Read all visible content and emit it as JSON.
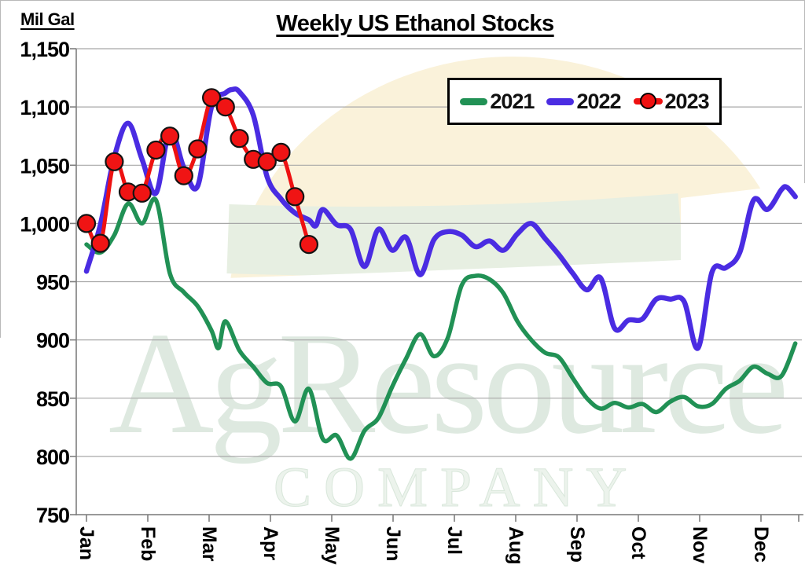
{
  "header": {
    "unit_label": "Mil Gal",
    "title": "Weekly US Ethanol Stocks"
  },
  "legend": {
    "items": [
      {
        "label": "2021",
        "color": "#219155",
        "marker": "line"
      },
      {
        "label": "2022",
        "color": "#4a2ce2",
        "marker": "line"
      },
      {
        "label": "2023",
        "color": "#ee1111",
        "marker": "line-circle"
      }
    ]
  },
  "watermark": {
    "line1": "AgResource",
    "line2": "COMPANY",
    "color1": "#dee9e0",
    "color2": "#ecf3ec"
  },
  "logo": {
    "dome_color": "#faf2da",
    "arc_color": "#e7efe2"
  },
  "chart_data": {
    "type": "line",
    "title": "Weekly US Ethanol Stocks",
    "ylabel": "Mil Gal",
    "xlabel": "",
    "x_unit": "week of year",
    "x_months": [
      "Jan",
      "Feb",
      "Mar",
      "Apr",
      "May",
      "Jun",
      "Jul",
      "Aug",
      "Sep",
      "Oct",
      "Nov",
      "Dec"
    ],
    "ylim": [
      750,
      1150
    ],
    "yticks": [
      1150,
      1100,
      1050,
      1000,
      950,
      900,
      850,
      800,
      750
    ],
    "ytick_labels": [
      "1,150",
      "1,100",
      "1,050",
      "1,000",
      "950",
      "900",
      "850",
      "800",
      "750"
    ],
    "grid": "horizontal",
    "legend_position": "top-right",
    "gridline_color": "#a8a8a8",
    "axis_color": "#7f7f7f",
    "series": [
      {
        "name": "2021",
        "color": "#219155",
        "style": "smooth-line",
        "line_width": 5.5,
        "points": [
          [
            1,
            982
          ],
          [
            2,
            975
          ],
          [
            3,
            990
          ],
          [
            4,
            1017
          ],
          [
            5,
            1000
          ],
          [
            6,
            1020
          ],
          [
            7,
            957
          ],
          [
            8,
            941
          ],
          [
            9,
            929
          ],
          [
            10,
            908
          ],
          [
            10.5,
            893
          ],
          [
            11,
            916
          ],
          [
            12,
            891
          ],
          [
            13,
            877
          ],
          [
            14,
            863
          ],
          [
            15,
            860
          ],
          [
            16,
            830
          ],
          [
            17,
            858
          ],
          [
            18,
            815
          ],
          [
            19,
            818
          ],
          [
            20,
            798
          ],
          [
            21,
            822
          ],
          [
            22,
            833
          ],
          [
            23,
            860
          ],
          [
            24,
            884
          ],
          [
            25,
            905
          ],
          [
            26,
            886
          ],
          [
            27,
            902
          ],
          [
            28,
            947
          ],
          [
            29,
            955
          ],
          [
            30,
            952
          ],
          [
            31,
            940
          ],
          [
            32,
            916
          ],
          [
            33,
            900
          ],
          [
            34,
            889
          ],
          [
            35,
            885
          ],
          [
            36,
            867
          ],
          [
            37,
            850
          ],
          [
            38,
            841
          ],
          [
            39,
            846
          ],
          [
            40,
            842
          ],
          [
            41,
            845
          ],
          [
            42,
            838
          ],
          [
            43,
            847
          ],
          [
            44,
            851
          ],
          [
            45,
            843
          ],
          [
            46,
            845
          ],
          [
            47,
            858
          ],
          [
            48,
            865
          ],
          [
            49,
            877
          ],
          [
            50,
            871
          ],
          [
            51,
            869
          ],
          [
            52,
            897
          ]
        ]
      },
      {
        "name": "2022",
        "color": "#4a2ce2",
        "style": "smooth-line",
        "line_width": 6.5,
        "points": [
          [
            1,
            959
          ],
          [
            2,
            999
          ],
          [
            3,
            1057
          ],
          [
            4,
            1086
          ],
          [
            5,
            1055
          ],
          [
            6,
            1026
          ],
          [
            7,
            1080
          ],
          [
            8,
            1048
          ],
          [
            9,
            1032
          ],
          [
            10,
            1100
          ],
          [
            11,
            1112
          ],
          [
            11.5,
            1115
          ],
          [
            12,
            1113
          ],
          [
            13,
            1093
          ],
          [
            14,
            1040
          ],
          [
            15,
            1021
          ],
          [
            16,
            1009
          ],
          [
            17,
            1003
          ],
          [
            17.5,
            998
          ],
          [
            18,
            1012
          ],
          [
            19,
            999
          ],
          [
            20,
            995
          ],
          [
            21,
            963
          ],
          [
            22,
            995
          ],
          [
            23,
            977
          ],
          [
            24,
            988
          ],
          [
            25,
            956
          ],
          [
            26,
            986
          ],
          [
            27,
            993
          ],
          [
            28,
            990
          ],
          [
            29,
            980
          ],
          [
            30,
            985
          ],
          [
            31,
            977
          ],
          [
            32,
            991
          ],
          [
            33,
            1000
          ],
          [
            34,
            987
          ],
          [
            35,
            973
          ],
          [
            36,
            957
          ],
          [
            37,
            943
          ],
          [
            38,
            953
          ],
          [
            39,
            910
          ],
          [
            40,
            917
          ],
          [
            41,
            918
          ],
          [
            42,
            935
          ],
          [
            43,
            935
          ],
          [
            44,
            933
          ],
          [
            45,
            893
          ],
          [
            46,
            958
          ],
          [
            47,
            962
          ],
          [
            48,
            975
          ],
          [
            49,
            1020
          ],
          [
            50,
            1012
          ],
          [
            51,
            1029
          ],
          [
            51.4,
            1031
          ],
          [
            52,
            1023
          ]
        ]
      },
      {
        "name": "2023",
        "color": "#ee1111",
        "style": "smooth-line-markers",
        "line_width": 5,
        "marker_color": "#f01414",
        "marker_edge": "#131313",
        "points": [
          [
            1,
            1000
          ],
          [
            2,
            983
          ],
          [
            3,
            1053
          ],
          [
            4,
            1027
          ],
          [
            5,
            1026
          ],
          [
            6,
            1063
          ],
          [
            7,
            1075
          ],
          [
            8,
            1041
          ],
          [
            9,
            1064
          ],
          [
            10,
            1108
          ],
          [
            11,
            1100
          ],
          [
            12,
            1073
          ],
          [
            13,
            1055
          ],
          [
            14,
            1053
          ],
          [
            15,
            1061
          ],
          [
            16,
            1023
          ],
          [
            17,
            982
          ]
        ]
      }
    ]
  }
}
